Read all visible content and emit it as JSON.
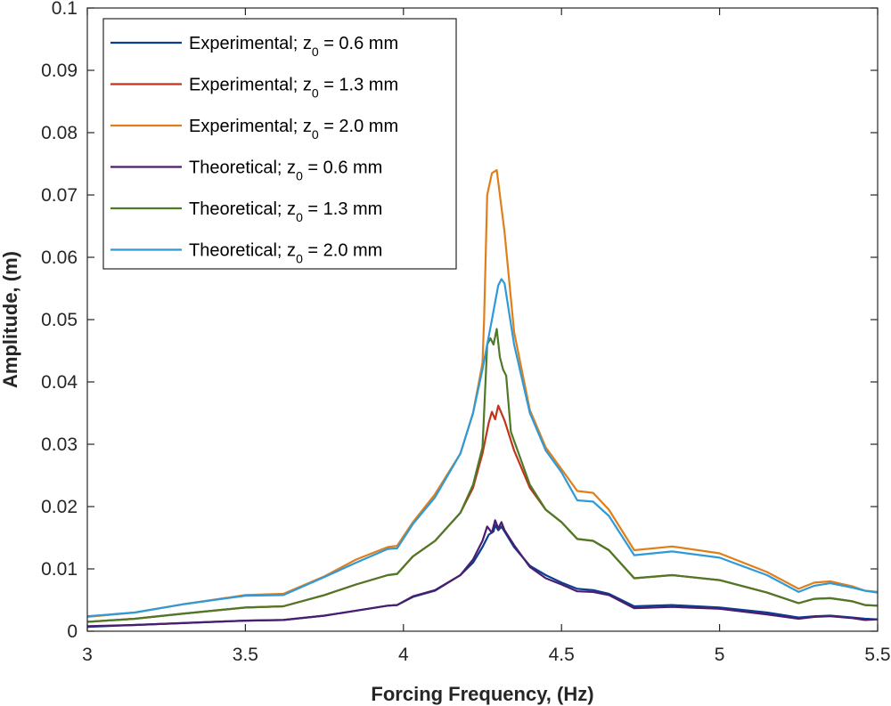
{
  "chart_data": {
    "type": "line",
    "xlabel": "Forcing Frequency, (Hz)",
    "ylabel": "Amplitude, (m)",
    "xlim": [
      3,
      5.5
    ],
    "ylim": [
      0,
      0.1
    ],
    "x_ticks": [
      "3",
      "3.5",
      "4",
      "4.5",
      "5",
      "5.5"
    ],
    "y_ticks": [
      "0",
      "0.01",
      "0.02",
      "0.03",
      "0.04",
      "0.05",
      "0.06",
      "0.07",
      "0.08",
      "0.09",
      "0.1"
    ],
    "legend_position": "top-left",
    "series": [
      {
        "name_prefix": "Experimental; z",
        "name_sub": "0",
        "name_suffix": " = 0.6 mm",
        "color": "#0b3d91",
        "points": [
          [
            3,
            0.0007
          ],
          [
            3.15,
            0.001
          ],
          [
            3.3,
            0.0013
          ],
          [
            3.5,
            0.0017
          ],
          [
            3.62,
            0.0018
          ],
          [
            3.75,
            0.0025
          ],
          [
            3.85,
            0.0033
          ],
          [
            3.95,
            0.0041
          ],
          [
            3.98,
            0.0042
          ],
          [
            4.03,
            0.0055
          ],
          [
            4.1,
            0.0065
          ],
          [
            4.18,
            0.009
          ],
          [
            4.22,
            0.011
          ],
          [
            4.25,
            0.0135
          ],
          [
            4.27,
            0.0155
          ],
          [
            4.285,
            0.016
          ],
          [
            4.29,
            0.017
          ],
          [
            4.3,
            0.0162
          ],
          [
            4.31,
            0.0168
          ],
          [
            4.32,
            0.016
          ],
          [
            4.35,
            0.0135
          ],
          [
            4.4,
            0.0105
          ],
          [
            4.45,
            0.009
          ],
          [
            4.5,
            0.0078
          ],
          [
            4.55,
            0.0068
          ],
          [
            4.6,
            0.0066
          ],
          [
            4.65,
            0.006
          ],
          [
            4.73,
            0.004
          ],
          [
            4.85,
            0.0042
          ],
          [
            5.0,
            0.0038
          ],
          [
            5.15,
            0.003
          ],
          [
            5.25,
            0.0022
          ],
          [
            5.3,
            0.0024
          ],
          [
            5.35,
            0.0025
          ],
          [
            5.42,
            0.0022
          ],
          [
            5.46,
            0.002
          ],
          [
            5.5,
            0.0019
          ]
        ]
      },
      {
        "name_prefix": "Experimental; z",
        "name_sub": "0",
        "name_suffix": " = 1.3 mm",
        "color": "#c0341d",
        "points": [
          [
            3,
            0.0015
          ],
          [
            3.15,
            0.002
          ],
          [
            3.3,
            0.0028
          ],
          [
            3.5,
            0.0038
          ],
          [
            3.62,
            0.004
          ],
          [
            3.75,
            0.0058
          ],
          [
            3.85,
            0.0075
          ],
          [
            3.95,
            0.009
          ],
          [
            3.98,
            0.0092
          ],
          [
            4.03,
            0.012
          ],
          [
            4.1,
            0.0145
          ],
          [
            4.18,
            0.019
          ],
          [
            4.22,
            0.023
          ],
          [
            4.25,
            0.0285
          ],
          [
            4.27,
            0.0335
          ],
          [
            4.28,
            0.0352
          ],
          [
            4.29,
            0.034
          ],
          [
            4.3,
            0.0362
          ],
          [
            4.31,
            0.035
          ],
          [
            4.32,
            0.0338
          ],
          [
            4.35,
            0.029
          ],
          [
            4.4,
            0.023
          ],
          [
            4.45,
            0.0195
          ],
          [
            4.5,
            0.0175
          ],
          [
            4.55,
            0.0148
          ],
          [
            4.6,
            0.0145
          ],
          [
            4.65,
            0.013
          ],
          [
            4.73,
            0.0085
          ],
          [
            4.85,
            0.009
          ],
          [
            5.0,
            0.0082
          ],
          [
            5.15,
            0.0062
          ],
          [
            5.25,
            0.0045
          ],
          [
            5.3,
            0.0052
          ],
          [
            5.35,
            0.0053
          ],
          [
            5.42,
            0.0048
          ],
          [
            5.46,
            0.0042
          ],
          [
            5.5,
            0.0041
          ]
        ]
      },
      {
        "name_prefix": "Experimental; z",
        "name_sub": "0",
        "name_suffix": " = 2.0 mm",
        "color": "#e07f1a",
        "points": [
          [
            3,
            0.0023
          ],
          [
            3.15,
            0.003
          ],
          [
            3.3,
            0.0043
          ],
          [
            3.5,
            0.0058
          ],
          [
            3.62,
            0.006
          ],
          [
            3.75,
            0.0088
          ],
          [
            3.85,
            0.0115
          ],
          [
            3.95,
            0.0135
          ],
          [
            3.98,
            0.0137
          ],
          [
            4.03,
            0.0175
          ],
          [
            4.1,
            0.022
          ],
          [
            4.18,
            0.0285
          ],
          [
            4.22,
            0.035
          ],
          [
            4.25,
            0.043
          ],
          [
            4.255,
            0.05
          ],
          [
            4.265,
            0.07
          ],
          [
            4.28,
            0.0735
          ],
          [
            4.295,
            0.074
          ],
          [
            4.31,
            0.068
          ],
          [
            4.32,
            0.064
          ],
          [
            4.35,
            0.048
          ],
          [
            4.4,
            0.0355
          ],
          [
            4.45,
            0.0295
          ],
          [
            4.5,
            0.026
          ],
          [
            4.55,
            0.0225
          ],
          [
            4.6,
            0.0222
          ],
          [
            4.65,
            0.0195
          ],
          [
            4.73,
            0.013
          ],
          [
            4.85,
            0.0136
          ],
          [
            5.0,
            0.0125
          ],
          [
            5.15,
            0.0095
          ],
          [
            5.25,
            0.0068
          ],
          [
            5.3,
            0.0078
          ],
          [
            5.35,
            0.008
          ],
          [
            5.42,
            0.0072
          ],
          [
            5.46,
            0.0065
          ],
          [
            5.5,
            0.0063
          ]
        ]
      },
      {
        "name_prefix": "Theoretical; z",
        "name_sub": "0",
        "name_suffix": " = 0.6 mm",
        "color": "#4b1d6e",
        "points": [
          [
            3,
            0.0008
          ],
          [
            3.15,
            0.001
          ],
          [
            3.3,
            0.0013
          ],
          [
            3.5,
            0.0017
          ],
          [
            3.62,
            0.0018
          ],
          [
            3.75,
            0.0025
          ],
          [
            3.85,
            0.0033
          ],
          [
            3.95,
            0.0041
          ],
          [
            3.98,
            0.0042
          ],
          [
            4.03,
            0.0056
          ],
          [
            4.1,
            0.0066
          ],
          [
            4.18,
            0.009
          ],
          [
            4.22,
            0.0115
          ],
          [
            4.25,
            0.0145
          ],
          [
            4.265,
            0.0168
          ],
          [
            4.28,
            0.0158
          ],
          [
            4.29,
            0.0178
          ],
          [
            4.3,
            0.0165
          ],
          [
            4.31,
            0.0175
          ],
          [
            4.32,
            0.0162
          ],
          [
            4.35,
            0.0138
          ],
          [
            4.4,
            0.0103
          ],
          [
            4.45,
            0.0085
          ],
          [
            4.5,
            0.0075
          ],
          [
            4.55,
            0.0064
          ],
          [
            4.6,
            0.0063
          ],
          [
            4.65,
            0.0058
          ],
          [
            4.73,
            0.0037
          ],
          [
            4.85,
            0.0039
          ],
          [
            5.0,
            0.0036
          ],
          [
            5.15,
            0.0027
          ],
          [
            5.25,
            0.002
          ],
          [
            5.3,
            0.0023
          ],
          [
            5.35,
            0.0024
          ],
          [
            5.42,
            0.0021
          ],
          [
            5.46,
            0.0018
          ],
          [
            5.5,
            0.0019
          ]
        ]
      },
      {
        "name_prefix": "Theoretical; z",
        "name_sub": "0",
        "name_suffix": " = 1.3 mm",
        "color": "#4e7a27",
        "points": [
          [
            3,
            0.0015
          ],
          [
            3.15,
            0.002
          ],
          [
            3.3,
            0.0028
          ],
          [
            3.5,
            0.0038
          ],
          [
            3.62,
            0.004
          ],
          [
            3.75,
            0.0058
          ],
          [
            3.85,
            0.0075
          ],
          [
            3.95,
            0.009
          ],
          [
            3.98,
            0.0092
          ],
          [
            4.03,
            0.012
          ],
          [
            4.1,
            0.0145
          ],
          [
            4.18,
            0.019
          ],
          [
            4.22,
            0.0235
          ],
          [
            4.25,
            0.0295
          ],
          [
            4.255,
            0.035
          ],
          [
            4.265,
            0.046
          ],
          [
            4.275,
            0.047
          ],
          [
            4.285,
            0.046
          ],
          [
            4.295,
            0.0485
          ],
          [
            4.305,
            0.044
          ],
          [
            4.315,
            0.042
          ],
          [
            4.325,
            0.041
          ],
          [
            4.34,
            0.032
          ],
          [
            4.4,
            0.0235
          ],
          [
            4.45,
            0.0195
          ],
          [
            4.5,
            0.0175
          ],
          [
            4.55,
            0.0148
          ],
          [
            4.6,
            0.0145
          ],
          [
            4.65,
            0.013
          ],
          [
            4.73,
            0.0085
          ],
          [
            4.85,
            0.009
          ],
          [
            5.0,
            0.0082
          ],
          [
            5.15,
            0.0062
          ],
          [
            5.25,
            0.0045
          ],
          [
            5.3,
            0.0052
          ],
          [
            5.35,
            0.0053
          ],
          [
            5.42,
            0.0048
          ],
          [
            5.46,
            0.0042
          ],
          [
            5.5,
            0.0041
          ]
        ]
      },
      {
        "name_prefix": "Theoretical; z",
        "name_sub": "0",
        "name_suffix": " = 2.0 mm",
        "color": "#2e9ad8",
        "points": [
          [
            3,
            0.0024
          ],
          [
            3.15,
            0.003
          ],
          [
            3.3,
            0.0043
          ],
          [
            3.5,
            0.0057
          ],
          [
            3.62,
            0.0058
          ],
          [
            3.75,
            0.0087
          ],
          [
            3.85,
            0.011
          ],
          [
            3.95,
            0.0132
          ],
          [
            3.98,
            0.0133
          ],
          [
            4.03,
            0.0172
          ],
          [
            4.1,
            0.0215
          ],
          [
            4.18,
            0.0285
          ],
          [
            4.22,
            0.035
          ],
          [
            4.25,
            0.042
          ],
          [
            4.28,
            0.05
          ],
          [
            4.3,
            0.0555
          ],
          [
            4.31,
            0.0565
          ],
          [
            4.32,
            0.0558
          ],
          [
            4.35,
            0.046
          ],
          [
            4.4,
            0.035
          ],
          [
            4.45,
            0.029
          ],
          [
            4.5,
            0.0255
          ],
          [
            4.55,
            0.021
          ],
          [
            4.6,
            0.0208
          ],
          [
            4.65,
            0.0185
          ],
          [
            4.73,
            0.0122
          ],
          [
            4.85,
            0.0128
          ],
          [
            5.0,
            0.0118
          ],
          [
            5.15,
            0.009
          ],
          [
            5.25,
            0.0063
          ],
          [
            5.3,
            0.0073
          ],
          [
            5.35,
            0.0077
          ],
          [
            5.42,
            0.007
          ],
          [
            5.46,
            0.0065
          ],
          [
            5.5,
            0.0062
          ]
        ]
      }
    ]
  }
}
